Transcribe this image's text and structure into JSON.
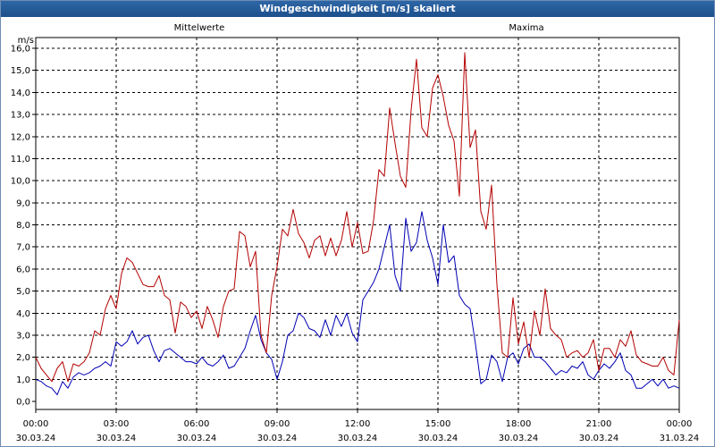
{
  "window": {
    "title": "Windgeschwindigkeit [m/s] skaliert"
  },
  "chart_data": {
    "type": "line",
    "title": "Windgeschwindigkeit [m/s] skaliert",
    "ylabel": "m/s",
    "ylim": [
      0,
      16
    ],
    "yticks": [
      "0,0",
      "1,0",
      "2,0",
      "3,0",
      "4,0",
      "5,0",
      "6,0",
      "7,0",
      "8,0",
      "9,0",
      "10,0",
      "11,0",
      "12,0",
      "13,0",
      "14,0",
      "15,0",
      "16,0"
    ],
    "xlim_hours": [
      0,
      24
    ],
    "xticks": [
      {
        "time": "00:00",
        "date": "30.03.24"
      },
      {
        "time": "03:00",
        "date": "30.03.24"
      },
      {
        "time": "06:00",
        "date": "30.03.24"
      },
      {
        "time": "09:00",
        "date": "30.03.24"
      },
      {
        "time": "12:00",
        "date": "30.03.24"
      },
      {
        "time": "15:00",
        "date": "30.03.24"
      },
      {
        "time": "18:00",
        "date": "30.03.24"
      },
      {
        "time": "21:00",
        "date": "30.03.24"
      },
      {
        "time": "00:00",
        "date": "31.03.24"
      }
    ],
    "grid": true,
    "series": [
      {
        "name": "Mittelwerte",
        "color": "#0000b4",
        "x": [
          0,
          0.2,
          0.4,
          0.6,
          0.8,
          1.0,
          1.2,
          1.4,
          1.6,
          1.8,
          2.0,
          2.2,
          2.4,
          2.6,
          2.8,
          3.0,
          3.2,
          3.4,
          3.6,
          3.8,
          4.0,
          4.2,
          4.4,
          4.6,
          4.8,
          5.0,
          5.2,
          5.4,
          5.6,
          5.8,
          6.0,
          6.2,
          6.4,
          6.6,
          6.8,
          7.0,
          7.2,
          7.4,
          7.6,
          7.8,
          8.0,
          8.2,
          8.4,
          8.6,
          8.8,
          9.0,
          9.2,
          9.4,
          9.6,
          9.8,
          10.0,
          10.2,
          10.4,
          10.6,
          10.8,
          11.0,
          11.2,
          11.4,
          11.6,
          11.8,
          12.0,
          12.2,
          12.4,
          12.6,
          12.8,
          13.0,
          13.2,
          13.4,
          13.6,
          13.8,
          14.0,
          14.2,
          14.4,
          14.6,
          14.8,
          15.0,
          15.2,
          15.4,
          15.6,
          15.8,
          16.0,
          16.2,
          16.4,
          16.6,
          16.8,
          17.0,
          17.2,
          17.4,
          17.6,
          17.8,
          18.0,
          18.2,
          18.4,
          18.6,
          18.8,
          19.0,
          19.2,
          19.4,
          19.6,
          19.8,
          20.0,
          20.2,
          20.4,
          20.6,
          20.8,
          21.0,
          21.2,
          21.4,
          21.6,
          21.8,
          22.0,
          22.2,
          22.4,
          22.6,
          22.8,
          23.0,
          23.2,
          23.4,
          23.6,
          23.8,
          24.0
        ],
        "values": [
          1.0,
          0.9,
          0.7,
          0.6,
          0.3,
          0.9,
          0.6,
          1.1,
          1.3,
          1.2,
          1.3,
          1.5,
          1.6,
          1.8,
          1.6,
          2.7,
          2.5,
          2.7,
          3.2,
          2.6,
          2.9,
          3.0,
          2.3,
          1.8,
          2.3,
          2.4,
          2.2,
          2.0,
          1.8,
          1.8,
          1.7,
          2.0,
          1.7,
          1.6,
          1.8,
          2.1,
          1.5,
          1.6,
          2.0,
          2.4,
          3.2,
          3.9,
          2.8,
          2.2,
          1.9,
          1.0,
          1.8,
          3.0,
          3.2,
          4.0,
          3.8,
          3.3,
          3.2,
          2.9,
          3.7,
          3.0,
          3.9,
          3.4,
          4.0,
          3.1,
          2.7,
          4.6,
          5.0,
          5.4,
          6.0,
          7.0,
          8.0,
          5.7,
          5.0,
          8.3,
          6.8,
          7.2,
          8.6,
          7.3,
          6.5,
          5.3,
          8.0,
          6.3,
          6.6,
          4.8,
          4.4,
          4.2,
          2.6,
          0.8,
          1.0,
          2.1,
          1.8,
          0.9,
          2.0,
          2.2,
          1.7,
          2.4,
          2.6,
          2.0,
          2.0,
          1.8,
          1.5,
          1.2,
          1.4,
          1.3,
          1.6,
          1.5,
          1.8,
          1.2,
          1.0,
          1.4,
          1.7,
          1.5,
          1.8,
          2.2,
          1.4,
          1.2,
          0.6,
          0.6,
          0.8,
          1.0,
          0.7,
          1.0,
          0.6,
          0.7,
          0.6
        ]
      },
      {
        "name": "Maxima",
        "color": "#b40000",
        "x": [
          0,
          0.2,
          0.4,
          0.6,
          0.8,
          1.0,
          1.2,
          1.4,
          1.6,
          1.8,
          2.0,
          2.2,
          2.4,
          2.6,
          2.8,
          3.0,
          3.2,
          3.4,
          3.6,
          3.8,
          4.0,
          4.2,
          4.4,
          4.6,
          4.8,
          5.0,
          5.2,
          5.4,
          5.6,
          5.8,
          6.0,
          6.2,
          6.4,
          6.6,
          6.8,
          7.0,
          7.2,
          7.4,
          7.6,
          7.8,
          8.0,
          8.2,
          8.4,
          8.6,
          8.8,
          9.0,
          9.2,
          9.4,
          9.6,
          9.8,
          10.0,
          10.2,
          10.4,
          10.6,
          10.8,
          11.0,
          11.2,
          11.4,
          11.6,
          11.8,
          12.0,
          12.2,
          12.4,
          12.6,
          12.8,
          13.0,
          13.2,
          13.4,
          13.6,
          13.8,
          14.0,
          14.2,
          14.4,
          14.6,
          14.8,
          15.0,
          15.2,
          15.4,
          15.6,
          15.8,
          16.0,
          16.2,
          16.4,
          16.6,
          16.8,
          17.0,
          17.2,
          17.4,
          17.6,
          17.8,
          18.0,
          18.2,
          18.4,
          18.6,
          18.8,
          19.0,
          19.2,
          19.4,
          19.6,
          19.8,
          20.0,
          20.2,
          20.4,
          20.6,
          20.8,
          21.0,
          21.2,
          21.4,
          21.6,
          21.8,
          22.0,
          22.2,
          22.4,
          22.6,
          22.8,
          23.0,
          23.2,
          23.4,
          23.6,
          23.8,
          24.0
        ],
        "values": [
          2.0,
          1.5,
          1.2,
          0.9,
          1.5,
          1.8,
          0.9,
          1.7,
          1.6,
          1.8,
          2.2,
          3.2,
          3.0,
          4.2,
          4.8,
          4.2,
          5.8,
          6.5,
          6.3,
          5.8,
          5.3,
          5.2,
          5.2,
          5.7,
          4.8,
          4.6,
          3.1,
          4.5,
          4.3,
          3.8,
          4.1,
          3.3,
          4.3,
          3.7,
          2.9,
          4.3,
          5.0,
          5.1,
          7.7,
          7.5,
          6.1,
          6.8,
          3.0,
          2.2,
          4.8,
          6.1,
          7.8,
          7.5,
          8.7,
          7.6,
          7.2,
          6.5,
          7.3,
          7.5,
          6.6,
          7.4,
          6.6,
          7.3,
          8.6,
          7.0,
          8.1,
          6.7,
          6.8,
          8.2,
          10.5,
          10.2,
          13.3,
          11.7,
          10.2,
          9.7,
          13.2,
          15.5,
          12.4,
          12.0,
          14.2,
          14.8,
          13.8,
          12.5,
          11.8,
          9.3,
          15.8,
          11.5,
          12.3,
          8.6,
          7.8,
          9.8,
          5.3,
          2.2,
          2.0,
          4.7,
          2.6,
          3.6,
          2.0,
          4.1,
          3.0,
          5.1,
          3.3,
          3.0,
          2.8,
          2.0,
          2.2,
          2.3,
          2.0,
          2.2,
          2.8,
          1.4,
          2.4,
          2.4,
          2.0,
          2.8,
          2.5,
          3.2,
          2.1,
          1.8,
          1.7,
          1.6,
          1.6,
          2.0,
          1.4,
          1.2,
          3.7
        ]
      }
    ]
  }
}
